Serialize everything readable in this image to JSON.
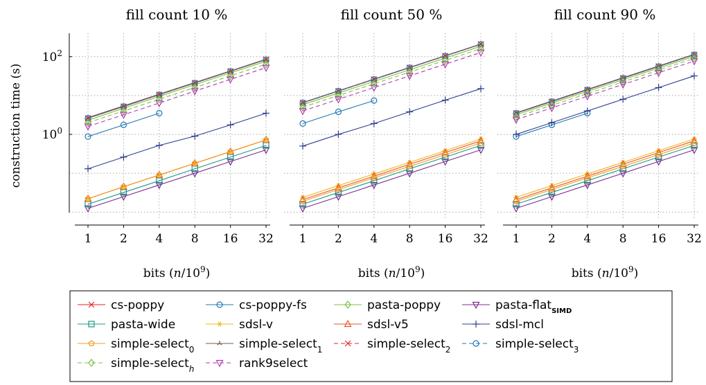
{
  "chart_data": [
    {
      "type": "line",
      "title": "fill count 10 %",
      "xlabel": "bits (n/10^9)",
      "ylabel": "construction time (s)",
      "x": [
        1,
        2,
        4,
        8,
        16,
        32
      ],
      "xticks": [
        "1",
        "2",
        "4",
        "8",
        "16",
        "32"
      ],
      "yticks": [
        "10^0",
        "10^2"
      ],
      "x_scale": "log2",
      "y_scale": "log10",
      "ylim": [
        0.007,
        400
      ],
      "grid": true,
      "series": [
        {
          "name": "cs-poppy",
          "values": [
            2.6,
            5.2,
            10.5,
            21,
            42,
            84
          ]
        },
        {
          "name": "cs-poppy-fs",
          "values": [
            0.88,
            1.75,
            3.5,
            null,
            null,
            null
          ]
        },
        {
          "name": "pasta-poppy",
          "values": [
            2.3,
            4.7,
            9.5,
            19,
            38,
            76
          ]
        },
        {
          "name": "pasta-flat_SIMD",
          "values": [
            0.0125,
            0.025,
            0.05,
            0.1,
            0.2,
            0.4
          ]
        },
        {
          "name": "pasta-wide",
          "values": [
            0.016,
            0.032,
            0.064,
            0.13,
            0.26,
            0.52
          ]
        },
        {
          "name": "sdsl-v",
          "values": [
            0.022,
            0.045,
            0.09,
            0.18,
            0.36,
            0.72
          ]
        },
        {
          "name": "sdsl-v5",
          "values": [
            0.022,
            0.045,
            0.09,
            0.18,
            0.36,
            0.72
          ]
        },
        {
          "name": "sdsl-mcl",
          "values": [
            0.13,
            0.26,
            0.52,
            0.9,
            1.75,
            3.5
          ]
        },
        {
          "name": "simple-select_0",
          "values": [
            0.022,
            0.045,
            0.09,
            0.18,
            0.36,
            0.72
          ]
        },
        {
          "name": "simple-select_1",
          "values": [
            2.7,
            5.4,
            10.8,
            21.6,
            43,
            86
          ]
        },
        {
          "name": "simple-select_2",
          "values": [
            2.6,
            5.2,
            10.5,
            21,
            42,
            84
          ]
        },
        {
          "name": "simple-select_3",
          "values": [
            2.6,
            5.2,
            10.5,
            21,
            42,
            84
          ]
        },
        {
          "name": "simple-select_h",
          "values": [
            2.0,
            4.0,
            8.0,
            16,
            32,
            64
          ]
        },
        {
          "name": "rank9select",
          "values": [
            1.6,
            3.2,
            6.4,
            13,
            26,
            52
          ]
        }
      ]
    },
    {
      "type": "line",
      "title": "fill count 50 %",
      "xlabel": "bits (n/10^9)",
      "x": [
        1,
        2,
        4,
        8,
        16,
        32
      ],
      "xticks": [
        "1",
        "2",
        "4",
        "8",
        "16",
        "32"
      ],
      "x_scale": "log2",
      "y_scale": "log10",
      "ylim": [
        0.007,
        400
      ],
      "grid": true,
      "series": [
        {
          "name": "cs-poppy",
          "values": [
            6.5,
            13,
            26,
            52,
            104,
            208
          ]
        },
        {
          "name": "cs-poppy-fs",
          "values": [
            1.9,
            3.8,
            7.4,
            null,
            null,
            null
          ]
        },
        {
          "name": "pasta-poppy",
          "values": [
            5.8,
            11.6,
            23,
            46,
            92,
            185
          ]
        },
        {
          "name": "pasta-flat_SIMD",
          "values": [
            0.0125,
            0.025,
            0.05,
            0.1,
            0.2,
            0.4
          ]
        },
        {
          "name": "pasta-wide",
          "values": [
            0.016,
            0.032,
            0.064,
            0.13,
            0.26,
            0.52
          ]
        },
        {
          "name": "sdsl-v",
          "values": [
            0.024,
            0.048,
            0.096,
            0.19,
            0.38,
            0.76
          ]
        },
        {
          "name": "sdsl-v5",
          "values": [
            0.021,
            0.042,
            0.084,
            0.17,
            0.34,
            0.68
          ]
        },
        {
          "name": "sdsl-mcl",
          "values": [
            0.5,
            1.0,
            1.9,
            3.8,
            7.6,
            15
          ]
        },
        {
          "name": "simple-select_0",
          "values": [
            0.019,
            0.038,
            0.076,
            0.15,
            0.3,
            0.6
          ]
        },
        {
          "name": "simple-select_1",
          "values": [
            6.6,
            13.2,
            26.5,
            53,
            106,
            212
          ]
        },
        {
          "name": "simple-select_2",
          "values": [
            6.5,
            13,
            26,
            52,
            104,
            208
          ]
        },
        {
          "name": "simple-select_3",
          "values": [
            6.5,
            13,
            26,
            52,
            104,
            208
          ]
        },
        {
          "name": "simple-select_h",
          "values": [
            5.0,
            10,
            20,
            40,
            80,
            160
          ]
        },
        {
          "name": "rank9select",
          "values": [
            4.0,
            8.0,
            16,
            32,
            64,
            128
          ]
        }
      ]
    },
    {
      "type": "line",
      "title": "fill count 90 %",
      "xlabel": "bits (n/10^9)",
      "x": [
        1,
        2,
        4,
        8,
        16,
        32
      ],
      "xticks": [
        "1",
        "2",
        "4",
        "8",
        "16",
        "32"
      ],
      "x_scale": "log2",
      "y_scale": "log10",
      "ylim": [
        0.007,
        400
      ],
      "grid": true,
      "series": [
        {
          "name": "cs-poppy",
          "values": [
            3.5,
            7.0,
            14,
            28,
            56,
            112
          ]
        },
        {
          "name": "cs-poppy-fs",
          "values": [
            0.88,
            1.75,
            3.5,
            null,
            null,
            null
          ]
        },
        {
          "name": "pasta-poppy",
          "values": [
            3.2,
            6.4,
            12.8,
            25.6,
            51,
            102
          ]
        },
        {
          "name": "pasta-flat_SIMD",
          "values": [
            0.0125,
            0.025,
            0.05,
            0.1,
            0.2,
            0.4
          ]
        },
        {
          "name": "pasta-wide",
          "values": [
            0.016,
            0.032,
            0.064,
            0.13,
            0.26,
            0.52
          ]
        },
        {
          "name": "sdsl-v",
          "values": [
            0.024,
            0.048,
            0.096,
            0.19,
            0.38,
            0.76
          ]
        },
        {
          "name": "sdsl-v5",
          "values": [
            0.021,
            0.042,
            0.084,
            0.17,
            0.34,
            0.68
          ]
        },
        {
          "name": "sdsl-mcl",
          "values": [
            1.0,
            2.0,
            4.0,
            8.0,
            16,
            32
          ]
        },
        {
          "name": "simple-select_0",
          "values": [
            0.019,
            0.038,
            0.076,
            0.15,
            0.3,
            0.6
          ]
        },
        {
          "name": "simple-select_1",
          "values": [
            3.6,
            7.2,
            14.4,
            28.8,
            57.6,
            115
          ]
        },
        {
          "name": "simple-select_2",
          "values": [
            3.5,
            7.0,
            14,
            28,
            56,
            112
          ]
        },
        {
          "name": "simple-select_3",
          "values": [
            3.5,
            7.0,
            14,
            28,
            56,
            112
          ]
        },
        {
          "name": "simple-select_h",
          "values": [
            2.8,
            5.6,
            11.2,
            22.4,
            45,
            90
          ]
        },
        {
          "name": "rank9select",
          "values": [
            2.4,
            4.8,
            9.6,
            19.2,
            38.4,
            77
          ]
        }
      ]
    }
  ],
  "legend": {
    "placement": "bottom",
    "items": [
      {
        "base": "cs-poppy",
        "sub": "",
        "color": "#e0262b",
        "marker": "x",
        "dash": false
      },
      {
        "base": "cs-poppy-fs",
        "sub": "",
        "color": "#1f77b4",
        "marker": "circle",
        "dash": false
      },
      {
        "base": "pasta-poppy",
        "sub": "",
        "color": "#7cc242",
        "marker": "diamond",
        "dash": false
      },
      {
        "base": "pasta-flat",
        "sub": "SIMD",
        "color": "#7b2d8e",
        "marker": "tri-down",
        "dash": false
      },
      {
        "base": "pasta-wide",
        "sub": "",
        "color": "#1a9a87",
        "marker": "square",
        "dash": false
      },
      {
        "base": "sdsl-v",
        "sub": "",
        "color": "#f2b51a",
        "marker": "star",
        "dash": false
      },
      {
        "base": "sdsl-v5",
        "sub": "",
        "color": "#e8552a",
        "marker": "tri-up",
        "dash": false
      },
      {
        "base": "sdsl-mcl",
        "sub": "",
        "color": "#2c3e8f",
        "marker": "plus",
        "dash": false
      },
      {
        "base": "simple-select",
        "sub": "0",
        "color": "#f39c1e",
        "marker": "pentagon",
        "dash": false
      },
      {
        "base": "simple-select",
        "sub": "1",
        "color": "#7a5a4a",
        "marker": "tri-y",
        "dash": false
      },
      {
        "base": "simple-select",
        "sub": "2",
        "color": "#e0262b",
        "marker": "x",
        "dash": true
      },
      {
        "base": "simple-select",
        "sub": "3",
        "color": "#1f77b4",
        "marker": "circle",
        "dash": true
      },
      {
        "base": "simple-select",
        "sub": "h",
        "color": "#7cc242",
        "marker": "diamond",
        "dash": true
      },
      {
        "base": "rank9select",
        "sub": "",
        "color": "#b03ab0",
        "marker": "tri-down",
        "dash": true
      }
    ]
  }
}
